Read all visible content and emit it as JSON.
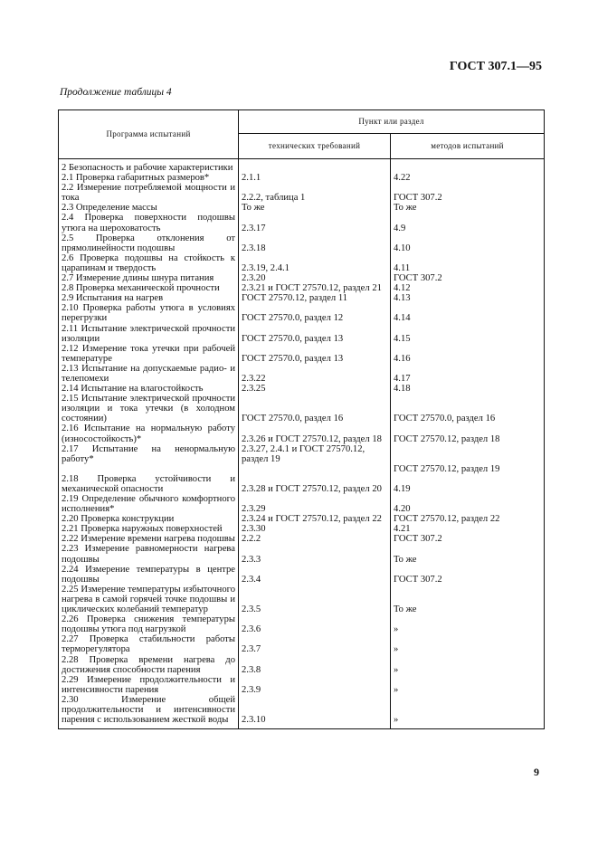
{
  "header": {
    "doc_id": "ГОСТ 307.1—95",
    "caption": "Продолжение таблицы 4"
  },
  "table": {
    "col_program": "Программа испытаний",
    "col_group": "Пункт или раздел",
    "col_tech": "технических требований",
    "col_methods": "методов испытаний",
    "rows": [
      {
        "program": "2 Безопасность и рабочие характеристики",
        "tech": "",
        "methods": ""
      },
      {
        "program": "2.1 Проверка габаритных размеров*",
        "tech": "2.1.1",
        "methods": "4.22"
      },
      {
        "program": "2.2 Измерение потребляемой мощности и тока",
        "tech": "2.2.2, таблица 1",
        "methods": "ГОСТ 307.2"
      },
      {
        "program": "2.3 Определение массы",
        "tech": "То же",
        "methods": "То же"
      },
      {
        "program": "2.4 Проверка поверхности подошвы утюга на шероховатость",
        "tech": "2.3.17",
        "methods": "4.9"
      },
      {
        "program": "2.5 Проверка отклонения от прямолинейности подошвы",
        "tech": "2.3.18",
        "methods": "4.10"
      },
      {
        "program": "2.6 Проверка подошвы на стойкость к царапинам и твердость",
        "tech": "2.3.19, 2.4.1",
        "methods": "4.11"
      },
      {
        "program": "2.7 Измерение длины шнура питания",
        "tech": "2.3.20",
        "methods": "ГОСТ 307.2"
      },
      {
        "program": "2.8 Проверка механической прочности",
        "tech": "2.3.21 и ГОСТ 27570.12, раздел 21",
        "methods": "4.12"
      },
      {
        "program": "2.9 Испытания на нагрев",
        "tech": "ГОСТ 27570.12, раздел 11",
        "methods": "4.13"
      },
      {
        "program": "2.10 Проверка работы утюга в условиях перегрузки",
        "tech": "ГОСТ 27570.0, раздел 12",
        "methods": "4.14"
      },
      {
        "program": "2.11 Испытание электрической прочности изоляции",
        "tech": "ГОСТ 27570.0, раздел 13",
        "methods": "4.15"
      },
      {
        "program": "2.12 Измерение тока утечки при рабочей температуре",
        "tech": "ГОСТ 27570.0, раздел 13",
        "methods": "4.16"
      },
      {
        "program": "2.13 Испытание на допускаемые радио- и телепомехи",
        "tech": "2.3.22",
        "methods": "4.17"
      },
      {
        "program": "2.14 Испытание на влагостойкость",
        "tech": "2.3.25",
        "methods": "4.18"
      },
      {
        "program": "2.15 Испытание электрической прочности изоляции и тока утечки (в холодном состоянии)",
        "tech": "ГОСТ 27570.0, раздел 16",
        "methods": "ГОСТ 27570.0, раздел 16"
      },
      {
        "program": "2.16 Испытание на нормальную работу (износостойкость)*",
        "tech": "2.3.26 и ГОСТ 27570.12, раздел 18",
        "methods": "ГОСТ 27570.12, раздел 18"
      },
      {
        "program": "2.17 Испытание на ненормальную работу*",
        "tech": "2.3.27, 2.4.1 и ГОСТ 27570.12, раздел 19",
        "methods": "ГОСТ 27570.12, раздел 19"
      },
      {
        "program": "2.18 Проверка устойчивости и механической опасности",
        "tech": "2.3.28 и ГОСТ 27570.12, раздел 20",
        "methods": "4.19"
      },
      {
        "program": "2.19 Определение обычного комфортного исполнения*",
        "tech": "2.3.29",
        "methods": "4.20"
      },
      {
        "program": "2.20 Проверка конструкции",
        "tech": "2.3.24 и ГОСТ 27570.12, раздел 22",
        "methods": "ГОСТ 27570.12, раздел 22"
      },
      {
        "program": "2.21 Проверка наружных поверхностей",
        "tech": "2.3.30",
        "methods": "4.21"
      },
      {
        "program": "2.22 Измерение времени нагрева подошвы",
        "tech": "2.2.2",
        "methods": "ГОСТ 307.2"
      },
      {
        "program": "2.23 Измерение равномерности нагрева подошвы",
        "tech": "2.3.3",
        "methods": "То же"
      },
      {
        "program": "2.24 Измерение температуры в центре подошвы",
        "tech": "2.3.4",
        "methods": "ГОСТ 307.2"
      },
      {
        "program": "2.25 Измерение температуры избыточного нагрева в самой горячей точке подошвы и циклических колебаний температур",
        "tech": "2.3.5",
        "methods": "То же"
      },
      {
        "program": "2.26 Проверка снижения температуры подошвы утюга под нагрузкой",
        "tech": "2.3.6",
        "methods": "»"
      },
      {
        "program": "2.27 Проверка стабильности работы терморегулятора",
        "tech": "2.3.7",
        "methods": "»"
      },
      {
        "program": "2.28 Проверка времени нагрева до достижения способности парения",
        "tech": "2.3.8",
        "methods": "»"
      },
      {
        "program": "2.29 Измерение продолжительности и интенсивности парения",
        "tech": "2.3.9",
        "methods": "»"
      },
      {
        "program": "2.30 Измерение общей продолжительности и интенсивности парения с использованием жесткой воды",
        "tech": "2.3.10",
        "methods": "»"
      }
    ]
  },
  "footer": {
    "page_number": "9"
  }
}
